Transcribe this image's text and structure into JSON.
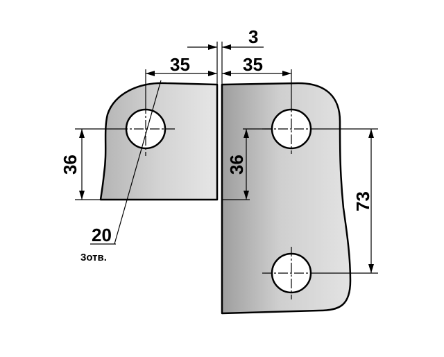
{
  "dimensions": {
    "gap": "3",
    "left_hole_offset": "35",
    "right_hole_offset": "35",
    "left_height": "36",
    "right_height": "36",
    "vertical_spacing": "73",
    "hole_diameter": "20",
    "hole_count": "3отв."
  },
  "colors": {
    "plate_light": "#e4e4e4",
    "plate_dark": "#a9a9a9",
    "line": "#000000",
    "background": "#ffffff"
  }
}
